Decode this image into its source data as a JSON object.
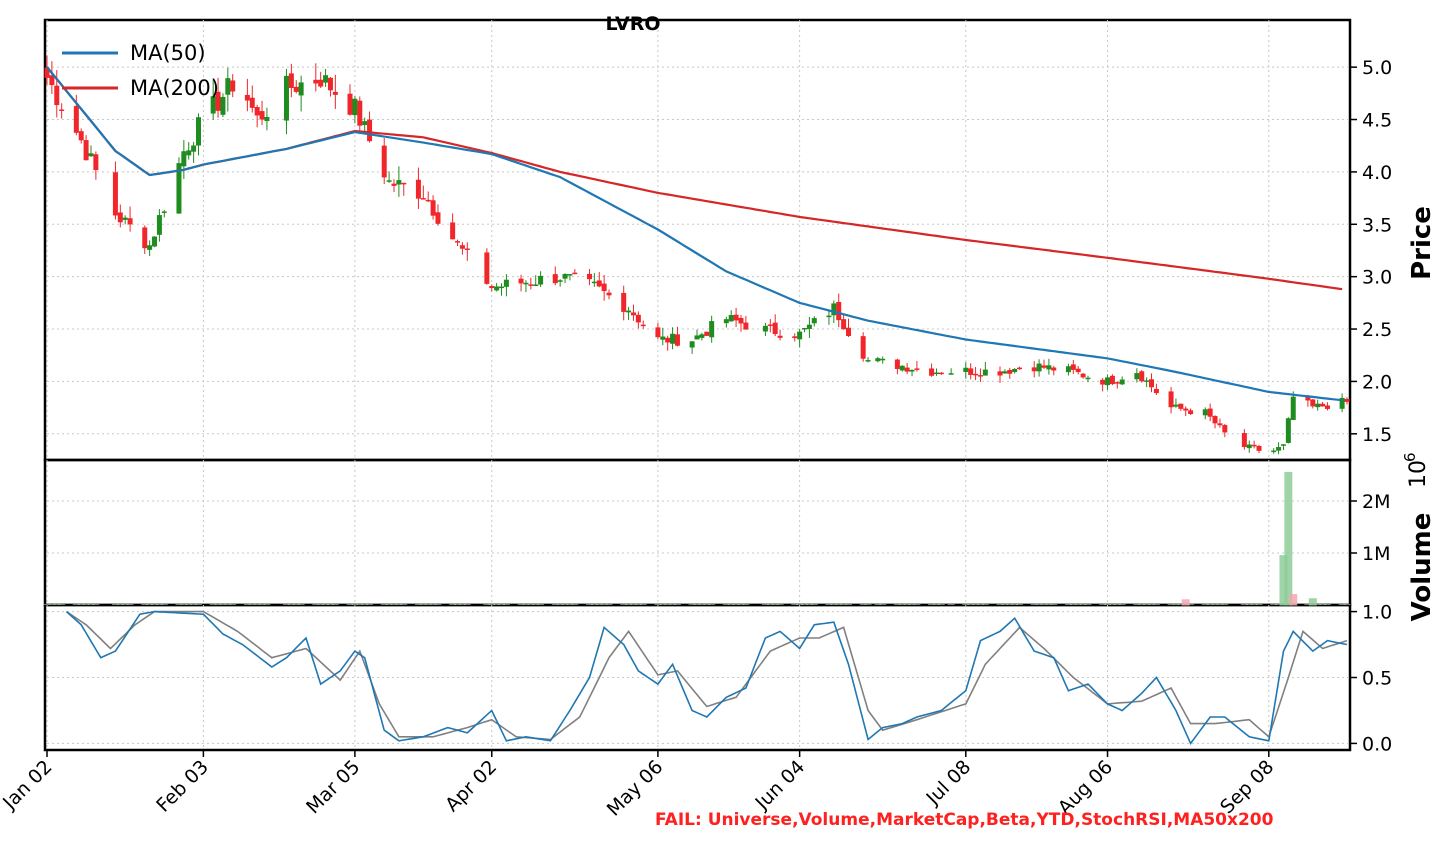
{
  "chart_data": [
    {
      "panel": "price",
      "type": "candlestick",
      "title": "LVRO",
      "ylabel": "Price",
      "ylim": [
        1.25,
        5.45
      ],
      "yticks": [
        "1.5",
        "2.0",
        "2.5",
        "3.0",
        "3.5",
        "4.0",
        "4.5",
        "5.0"
      ],
      "x_tick_labels": [
        "Jan 02",
        "Feb 03",
        "Mar 05",
        "Apr 02",
        "May 06",
        "Jun 04",
        "Jul 08",
        "Aug 06",
        "Sep 08"
      ],
      "grid": true,
      "legend": {
        "position": "top-left",
        "entries": [
          "MA(50)",
          "MA(200)"
        ]
      },
      "colors": {
        "up": "#1f8c1f",
        "down": "#f0262b",
        "ma50": "#1f77b4",
        "ma200": "#d62728"
      },
      "close_key_points": [
        [
          "Jan 02",
          4.9
        ],
        [
          "Jan 09",
          4.3
        ],
        [
          "Jan 16",
          3.6
        ],
        [
          "Jan 23",
          3.3
        ],
        [
          "Jan 30",
          4.2
        ],
        [
          "Feb 03",
          4.5
        ],
        [
          "Feb 10",
          4.9
        ],
        [
          "Feb 14",
          4.5
        ],
        [
          "Feb 20",
          4.8
        ],
        [
          "Feb 27",
          4.9
        ],
        [
          "Mar 05",
          4.6
        ],
        [
          "Mar 12",
          3.9
        ],
        [
          "Mar 19",
          3.8
        ],
        [
          "Mar 26",
          3.3
        ],
        [
          "Apr 02",
          2.9
        ],
        [
          "Apr 09",
          2.95
        ],
        [
          "Apr 16",
          3.0
        ],
        [
          "Apr 23",
          2.9
        ],
        [
          "Apr 30",
          2.7
        ],
        [
          "May 06",
          2.4
        ],
        [
          "May 13",
          2.4
        ],
        [
          "May 20",
          2.6
        ],
        [
          "May 27",
          2.5
        ],
        [
          "Jun 04",
          2.45
        ],
        [
          "Jun 11",
          2.7
        ],
        [
          "Jun 18",
          2.2
        ],
        [
          "Jun 25",
          2.15
        ],
        [
          "Jul 01",
          2.1
        ],
        [
          "Jul 08",
          2.1
        ],
        [
          "Jul 15",
          2.1
        ],
        [
          "Jul 22",
          2.15
        ],
        [
          "Jul 29",
          2.1
        ],
        [
          "Aug 06",
          2.0
        ],
        [
          "Aug 12",
          2.1
        ],
        [
          "Aug 19",
          1.75
        ],
        [
          "Aug 26",
          1.7
        ],
        [
          "Sep 01",
          1.4
        ],
        [
          "Sep 08",
          1.32
        ],
        [
          "Sep 11",
          1.38
        ],
        [
          "Sep 13",
          1.85
        ],
        [
          "Sep 17",
          1.75
        ],
        [
          "Sep 23",
          1.8
        ]
      ],
      "ma50_key_points": [
        [
          "Jan 02",
          5.0
        ],
        [
          "Jan 16",
          4.2
        ],
        [
          "Jan 23",
          3.97
        ],
        [
          "Jan 30",
          4.02
        ],
        [
          "Feb 03",
          4.07
        ],
        [
          "Feb 20",
          4.22
        ],
        [
          "Mar 05",
          4.38
        ],
        [
          "Mar 19",
          4.28
        ],
        [
          "Apr 02",
          4.17
        ],
        [
          "Apr 16",
          3.95
        ],
        [
          "May 06",
          3.45
        ],
        [
          "May 20",
          3.05
        ],
        [
          "Jun 04",
          2.75
        ],
        [
          "Jun 18",
          2.58
        ],
        [
          "Jul 08",
          2.4
        ],
        [
          "Aug 06",
          2.22
        ],
        [
          "Aug 19",
          2.1
        ],
        [
          "Sep 08",
          1.9
        ],
        [
          "Sep 23",
          1.82
        ]
      ],
      "ma200_key_points": [
        [
          "Jan 02",
          5.0
        ],
        [
          "Jan 16",
          4.2
        ],
        [
          "Jan 23",
          3.97
        ],
        [
          "Jan 30",
          4.02
        ],
        [
          "Feb 03",
          4.07
        ],
        [
          "Feb 20",
          4.22
        ],
        [
          "Mar 05",
          4.39
        ],
        [
          "Mar 19",
          4.33
        ],
        [
          "Apr 02",
          4.18
        ],
        [
          "Apr 16",
          4.0
        ],
        [
          "May 06",
          3.8
        ],
        [
          "Jun 04",
          3.57
        ],
        [
          "Jul 08",
          3.35
        ],
        [
          "Aug 06",
          3.18
        ],
        [
          "Sep 08",
          2.98
        ],
        [
          "Sep 23",
          2.88
        ]
      ]
    },
    {
      "panel": "volume",
      "type": "bar",
      "ylabel": "Volume",
      "exponent_label": "1e6",
      "yticks": [
        "1M",
        "2M"
      ],
      "ylim": [
        0,
        2.5
      ],
      "unit": "millions",
      "bars": [
        {
          "x": "Sep 11",
          "value": 0.95,
          "direction": "up"
        },
        {
          "x": "Sep 12",
          "value": 2.55,
          "direction": "up"
        },
        {
          "x": "Sep 13",
          "value": 0.2,
          "direction": "down"
        },
        {
          "x": "Sep 17",
          "value": 0.12,
          "direction": "up"
        },
        {
          "x": "Aug 22",
          "value": 0.1,
          "direction": "down"
        }
      ],
      "baseline_value": 0.02
    },
    {
      "panel": "oscillator",
      "type": "line",
      "ylim": [
        -0.05,
        1.05
      ],
      "yticks": [
        "0.0",
        "0.5",
        "1.0"
      ],
      "series": [
        {
          "color": "#1f77b4",
          "key_points": [
            [
              "Jan 06",
              1.0
            ],
            [
              "Jan 09",
              0.9
            ],
            [
              "Jan 13",
              0.65
            ],
            [
              "Jan 16",
              0.7
            ],
            [
              "Jan 21",
              0.98
            ],
            [
              "Jan 24",
              1.0
            ],
            [
              "Feb 03",
              0.98
            ],
            [
              "Feb 07",
              0.83
            ],
            [
              "Feb 11",
              0.75
            ],
            [
              "Feb 17",
              0.58
            ],
            [
              "Feb 20",
              0.65
            ],
            [
              "Feb 24",
              0.8
            ],
            [
              "Feb 27",
              0.45
            ],
            [
              "Mar 02",
              0.55
            ],
            [
              "Mar 05",
              0.7
            ],
            [
              "Mar 07",
              0.65
            ],
            [
              "Mar 11",
              0.1
            ],
            [
              "Mar 14",
              0.02
            ],
            [
              "Mar 19",
              0.05
            ],
            [
              "Mar 24",
              0.12
            ],
            [
              "Mar 28",
              0.08
            ],
            [
              "Apr 02",
              0.25
            ],
            [
              "Apr 05",
              0.02
            ],
            [
              "Apr 09",
              0.05
            ],
            [
              "Apr 14",
              0.02
            ],
            [
              "Apr 18",
              0.25
            ],
            [
              "Apr 22",
              0.5
            ],
            [
              "Apr 25",
              0.88
            ],
            [
              "Apr 29",
              0.75
            ],
            [
              "May 02",
              0.55
            ],
            [
              "May 06",
              0.45
            ],
            [
              "May 09",
              0.6
            ],
            [
              "May 13",
              0.25
            ],
            [
              "May 16",
              0.2
            ],
            [
              "May 20",
              0.35
            ],
            [
              "May 24",
              0.42
            ],
            [
              "May 28",
              0.8
            ],
            [
              "May 31",
              0.85
            ],
            [
              "Jun 04",
              0.72
            ],
            [
              "Jun 07",
              0.9
            ],
            [
              "Jun 11",
              0.92
            ],
            [
              "Jun 14",
              0.6
            ],
            [
              "Jun 18",
              0.03
            ],
            [
              "Jun 21",
              0.12
            ],
            [
              "Jun 25",
              0.15
            ],
            [
              "Jun 28",
              0.2
            ],
            [
              "Jul 03",
              0.25
            ],
            [
              "Jul 08",
              0.4
            ],
            [
              "Jul 11",
              0.78
            ],
            [
              "Jul 15",
              0.85
            ],
            [
              "Jul 18",
              0.95
            ],
            [
              "Jul 22",
              0.7
            ],
            [
              "Jul 26",
              0.65
            ],
            [
              "Jul 29",
              0.4
            ],
            [
              "Aug 02",
              0.45
            ],
            [
              "Aug 06",
              0.3
            ],
            [
              "Aug 09",
              0.25
            ],
            [
              "Aug 13",
              0.38
            ],
            [
              "Aug 16",
              0.5
            ],
            [
              "Aug 20",
              0.25
            ],
            [
              "Aug 23",
              0.0
            ],
            [
              "Aug 27",
              0.2
            ],
            [
              "Aug 30",
              0.2
            ],
            [
              "Sep 04",
              0.05
            ],
            [
              "Sep 08",
              0.02
            ],
            [
              "Sep 11",
              0.7
            ],
            [
              "Sep 13",
              0.85
            ],
            [
              "Sep 17",
              0.7
            ],
            [
              "Sep 20",
              0.78
            ],
            [
              "Sep 24",
              0.75
            ]
          ]
        },
        {
          "color": "#808080",
          "key_points": [
            [
              "Jan 06",
              1.0
            ],
            [
              "Jan 10",
              0.9
            ],
            [
              "Jan 15",
              0.72
            ],
            [
              "Jan 20",
              0.9
            ],
            [
              "Jan 24",
              1.0
            ],
            [
              "Feb 03",
              1.0
            ],
            [
              "Feb 10",
              0.85
            ],
            [
              "Feb 17",
              0.65
            ],
            [
              "Feb 24",
              0.72
            ],
            [
              "Mar 02",
              0.48
            ],
            [
              "Mar 06",
              0.7
            ],
            [
              "Mar 10",
              0.3
            ],
            [
              "Mar 14",
              0.05
            ],
            [
              "Mar 21",
              0.05
            ],
            [
              "Mar 28",
              0.12
            ],
            [
              "Apr 02",
              0.18
            ],
            [
              "Apr 07",
              0.05
            ],
            [
              "Apr 14",
              0.03
            ],
            [
              "Apr 20",
              0.2
            ],
            [
              "Apr 26",
              0.65
            ],
            [
              "Apr 30",
              0.85
            ],
            [
              "May 06",
              0.52
            ],
            [
              "May 10",
              0.55
            ],
            [
              "May 16",
              0.28
            ],
            [
              "May 22",
              0.35
            ],
            [
              "May 29",
              0.7
            ],
            [
              "Jun 04",
              0.8
            ],
            [
              "Jun 08",
              0.8
            ],
            [
              "Jun 13",
              0.88
            ],
            [
              "Jun 18",
              0.25
            ],
            [
              "Jun 21",
              0.1
            ],
            [
              "Jun 28",
              0.18
            ],
            [
              "Jul 08",
              0.3
            ],
            [
              "Jul 12",
              0.6
            ],
            [
              "Jul 19",
              0.88
            ],
            [
              "Jul 24",
              0.72
            ],
            [
              "Jul 30",
              0.5
            ],
            [
              "Aug 06",
              0.3
            ],
            [
              "Aug 13",
              0.32
            ],
            [
              "Aug 19",
              0.42
            ],
            [
              "Aug 23",
              0.15
            ],
            [
              "Aug 28",
              0.15
            ],
            [
              "Sep 04",
              0.18
            ],
            [
              "Sep 08",
              0.05
            ],
            [
              "Sep 12",
              0.5
            ],
            [
              "Sep 15",
              0.85
            ],
            [
              "Sep 19",
              0.72
            ],
            [
              "Sep 24",
              0.78
            ]
          ]
        }
      ]
    }
  ],
  "footer": {
    "fail_text": "FAIL: Universe,Volume,MarketCap,Beta,YTD,StochRSI,MA50x200",
    "fail_color": "#ff2020"
  }
}
